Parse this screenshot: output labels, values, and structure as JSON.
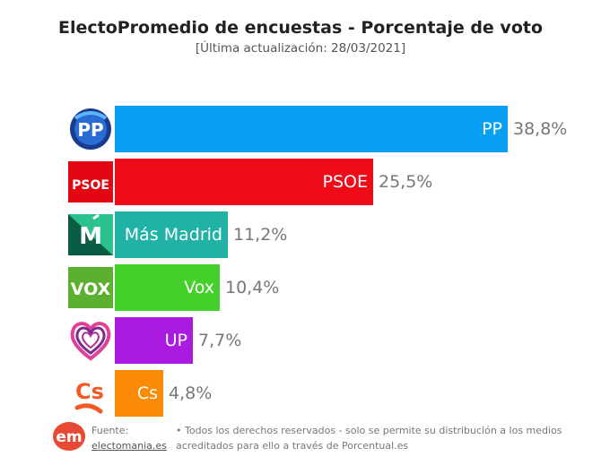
{
  "header": {
    "title": "ElectoPromedio de encuestas - Porcentaje de voto",
    "subtitle": "[Última actualización: 28/03/2021]"
  },
  "chart_data": {
    "type": "bar",
    "orientation": "horizontal",
    "title": "ElectoPromedio de encuestas - Porcentaje de voto",
    "subtitle": "[Última actualización: 28/03/2021]",
    "categories": [
      "PP",
      "PSOE",
      "Más Madrid",
      "Vox",
      "UP",
      "Cs"
    ],
    "values": [
      38.8,
      25.5,
      11.2,
      10.4,
      7.7,
      4.8
    ],
    "value_labels": [
      "38,8%",
      "25,5%",
      "11,2%",
      "10,4%",
      "7,7%",
      "4,8%"
    ],
    "colors": [
      "#07a0f4",
      "#ef0b18",
      "#21b2a6",
      "#45d12b",
      "#a91be0",
      "#fb8a06"
    ],
    "logos": [
      "pp-logo",
      "psoe-logo",
      "mas-madrid-logo",
      "vox-logo",
      "up-logo",
      "cs-logo"
    ],
    "logo_text": [
      "PP",
      "PSOE",
      "M",
      "VOX",
      "",
      "Cs"
    ],
    "xlim": [
      0,
      38.8
    ]
  },
  "footer": {
    "logo_text": "em",
    "source_label": "Fuente:",
    "source_link": "electomania.es",
    "rights_line1": "• Todos los derechos reservados - solo se permite su distribución a los medios",
    "rights_line2": "acreditados para ello a través de Porcentual.es"
  }
}
